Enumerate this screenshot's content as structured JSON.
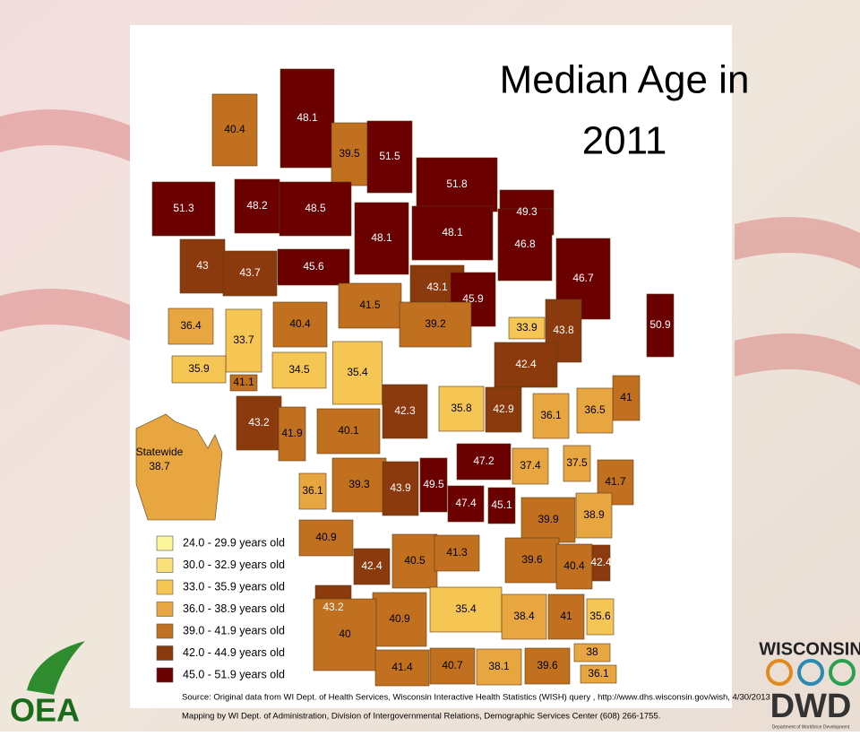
{
  "title_lines": [
    "Median Age in",
    "2011"
  ],
  "counties": [
    {
      "value": 40.4,
      "color": "#c0701f"
    },
    {
      "value": 48.1,
      "color": "#6b0000"
    },
    {
      "value": 39.5,
      "color": "#c0701f"
    },
    {
      "value": 51.5,
      "color": "#6b0000"
    },
    {
      "value": 51.8,
      "color": "#6b0000"
    },
    {
      "value": 49.3,
      "color": "#6b0000"
    },
    {
      "value": 51.3,
      "color": "#6b0000"
    },
    {
      "value": 48.2,
      "color": "#6b0000"
    },
    {
      "value": 48.5,
      "color": "#6b0000"
    },
    {
      "value": 48.1,
      "color": "#6b0000"
    },
    {
      "value": 48.1,
      "color": "#6b0000"
    },
    {
      "value": 46.8,
      "color": "#6b0000"
    },
    {
      "value": 46.7,
      "color": "#6b0000"
    },
    {
      "value": 43,
      "color": "#8b3a0e"
    },
    {
      "value": 43.7,
      "color": "#8b3a0e"
    },
    {
      "value": 45.6,
      "color": "#6b0000"
    },
    {
      "value": 43.1,
      "color": "#8b3a0e"
    },
    {
      "value": 45.9,
      "color": "#6b0000"
    },
    {
      "value": 50.9,
      "color": "#6b0000"
    },
    {
      "value": 36.4,
      "color": "#e8a640"
    },
    {
      "value": 33.7,
      "color": "#f5c653"
    },
    {
      "value": 40.4,
      "color": "#c0701f"
    },
    {
      "value": 41.5,
      "color": "#c0701f"
    },
    {
      "value": 39.2,
      "color": "#c0701f"
    },
    {
      "value": 33.9,
      "color": "#f5c653"
    },
    {
      "value": 43.8,
      "color": "#8b3a0e"
    },
    {
      "value": 42.4,
      "color": "#8b3a0e"
    },
    {
      "value": 35.9,
      "color": "#f5c653"
    },
    {
      "value": 41.1,
      "color": "#c0701f"
    },
    {
      "value": 34.5,
      "color": "#f5c653"
    },
    {
      "value": 35.4,
      "color": "#f5c653"
    },
    {
      "value": 41,
      "color": "#c0701f"
    },
    {
      "value": 43.2,
      "color": "#8b3a0e"
    },
    {
      "value": 41.9,
      "color": "#c0701f"
    },
    {
      "value": 40.1,
      "color": "#c0701f"
    },
    {
      "value": 42.3,
      "color": "#8b3a0e"
    },
    {
      "value": 35.8,
      "color": "#f5c653"
    },
    {
      "value": 42.9,
      "color": "#8b3a0e"
    },
    {
      "value": 36.1,
      "color": "#e8a640"
    },
    {
      "value": 36.5,
      "color": "#e8a640"
    },
    {
      "value": 47.2,
      "color": "#6b0000"
    },
    {
      "value": 37.4,
      "color": "#e8a640"
    },
    {
      "value": 37.5,
      "color": "#e8a640"
    },
    {
      "value": 41.7,
      "color": "#c0701f"
    },
    {
      "value": 36.1,
      "color": "#e8a640"
    },
    {
      "value": 39.3,
      "color": "#c0701f"
    },
    {
      "value": 43.9,
      "color": "#8b3a0e"
    },
    {
      "value": 49.5,
      "color": "#6b0000"
    },
    {
      "value": 47.4,
      "color": "#6b0000"
    },
    {
      "value": 45.1,
      "color": "#6b0000"
    },
    {
      "value": 39.9,
      "color": "#c0701f"
    },
    {
      "value": 38.9,
      "color": "#e8a640"
    },
    {
      "value": 40.9,
      "color": "#c0701f"
    },
    {
      "value": 42.4,
      "color": "#8b3a0e"
    },
    {
      "value": 40.5,
      "color": "#c0701f"
    },
    {
      "value": 41.3,
      "color": "#c0701f"
    },
    {
      "value": 39.6,
      "color": "#c0701f"
    },
    {
      "value": 40.4,
      "color": "#c0701f"
    },
    {
      "value": 42.4,
      "color": "#8b3a0e"
    },
    {
      "value": 43.2,
      "color": "#8b3a0e"
    },
    {
      "value": 40.9,
      "color": "#c0701f"
    },
    {
      "value": 35.4,
      "color": "#f5c653"
    },
    {
      "value": 38.4,
      "color": "#e8a640"
    },
    {
      "value": 41,
      "color": "#c0701f"
    },
    {
      "value": 35.6,
      "color": "#f5c653"
    },
    {
      "value": 40,
      "color": "#c0701f"
    },
    {
      "value": 41.4,
      "color": "#c0701f"
    },
    {
      "value": 40.7,
      "color": "#c0701f"
    },
    {
      "value": 38.1,
      "color": "#e8a640"
    },
    {
      "value": 39.6,
      "color": "#c0701f"
    },
    {
      "value": 38,
      "color": "#e8a640"
    },
    {
      "value": 36.1,
      "color": "#e8a640"
    }
  ],
  "statewide": {
    "label": "Statewide",
    "value": 38.7,
    "color": "#e8a640"
  },
  "legend": [
    {
      "label": "24.0 - 29.9 years old",
      "color": "#fdf59a"
    },
    {
      "label": "30.0 - 32.9 years old",
      "color": "#fbe07a"
    },
    {
      "label": "33.0 - 35.9 years old",
      "color": "#f5c653"
    },
    {
      "label": "36.0 - 38.9 years old",
      "color": "#e8a640"
    },
    {
      "label": "39.0 - 41.9 years old",
      "color": "#c0701f"
    },
    {
      "label": "42.0 - 44.9 years old",
      "color": "#8b3a0e"
    },
    {
      "label": "45.0 - 51.9 years old",
      "color": "#6b0000"
    }
  ],
  "source_lines": [
    "Source:  Original data from WI Dept. of Health Services,  Wisconsin Interactive Health Statistics  (WISH) query , http://www.dhs.wisconsin.gov/wish, 4/30/2013",
    "Mapping by WI Dept. of Administration, Division of Intergovernmental Relations, Demographic Services Center (608) 266-1755."
  ],
  "logos": {
    "left": "OEA",
    "right_top": "WISCONSIN",
    "right_bottom": "DWD",
    "right_small": "Department of Workforce Development"
  }
}
